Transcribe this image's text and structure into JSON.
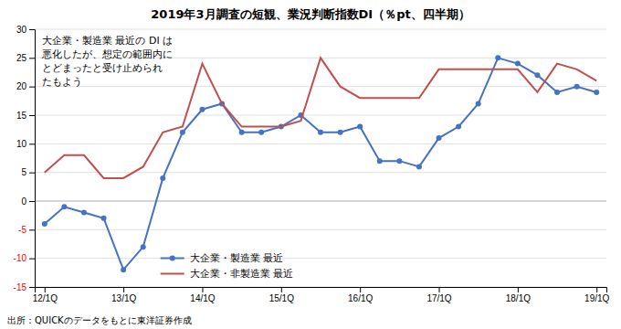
{
  "chart_data": {
    "type": "line",
    "title": "2019年3月調査の短観、業況判断指数DI（％pt、四半期）",
    "source": "出所：QUICKのデータをもとに東洋証券作成",
    "annotations": [
      "大企業・製造業 最近の DI は",
      "悪化したが、想定の範囲内に",
      "とどまったと受け止められ",
      "たもよう"
    ],
    "categories": [
      "12/1Q",
      null,
      null,
      null,
      "13/1Q",
      null,
      null,
      null,
      "14/1Q",
      null,
      null,
      null,
      "15/1Q",
      null,
      null,
      null,
      "16/1Q",
      null,
      null,
      null,
      "17/1Q",
      null,
      null,
      null,
      "18/1Q",
      null,
      null,
      null,
      "19/1Q"
    ],
    "series": [
      {
        "name": "大企業・製造業 最近",
        "color": "#4472C4",
        "marker": "circle",
        "values": [
          -4,
          -1,
          -2,
          -3,
          -12,
          -8,
          4,
          12,
          16,
          17,
          12,
          12,
          13,
          15,
          12,
          12,
          13,
          7,
          7,
          6,
          11,
          13,
          17,
          25,
          24,
          22,
          19,
          20,
          19
        ]
      },
      {
        "name": "大企業・非製造業 最近",
        "color": "#C0504D",
        "values": [
          5,
          8,
          8,
          4,
          4,
          6,
          12,
          13,
          24,
          17,
          13,
          13,
          13,
          14,
          25,
          20,
          18,
          18,
          18,
          18,
          23,
          23,
          23,
          23,
          23,
          19,
          24,
          23,
          21
        ]
      }
    ],
    "ylim": [
      -15,
      30
    ],
    "yticks": [
      -15,
      -10,
      -5,
      0,
      5,
      10,
      15,
      20,
      25,
      30
    ],
    "grid": true,
    "legend": "lower left"
  }
}
